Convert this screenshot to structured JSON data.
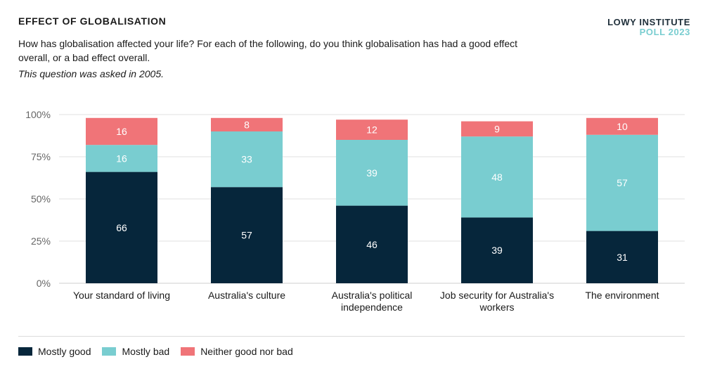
{
  "header": {
    "title": "EFFECT OF GLOBALISATION",
    "brand_line1": "LOWY INSTITUTE",
    "brand_line2": "POLL 2023",
    "question": "How has globalisation affected your life? For each of the following, do you think globalisation has had a good effect overall, or a bad effect overall.",
    "note": "This question was asked in 2005."
  },
  "colors": {
    "mostly_good": "#06263b",
    "mostly_bad": "#79cdd0",
    "neither": "#f07478",
    "axis_text": "#666666",
    "grid": "#e0e0e0"
  },
  "chart_data": {
    "type": "bar",
    "stacked": true,
    "categories": [
      [
        "Your standard of living"
      ],
      [
        "Australia's culture"
      ],
      [
        "Australia's political",
        "independence"
      ],
      [
        "Job security for Australia's",
        "workers"
      ],
      [
        "The environment"
      ]
    ],
    "series": [
      {
        "name": "Mostly good",
        "color": "#06263b",
        "label_color": "#ffffff",
        "values": [
          66,
          57,
          46,
          39,
          31
        ]
      },
      {
        "name": "Mostly bad",
        "color": "#79cdd0",
        "label_color": "#ffffff",
        "values": [
          16,
          33,
          39,
          48,
          57
        ]
      },
      {
        "name": "Neither good nor bad",
        "color": "#f07478",
        "label_color": "#ffffff",
        "values": [
          16,
          8,
          12,
          9,
          10
        ]
      }
    ],
    "ylim": [
      0,
      100
    ],
    "yticks": [
      "0%",
      "25%",
      "50%",
      "75%",
      "100%"
    ],
    "ytick_values": [
      0,
      25,
      50,
      75,
      100
    ],
    "grid": true,
    "legend_position": "bottom-left"
  }
}
